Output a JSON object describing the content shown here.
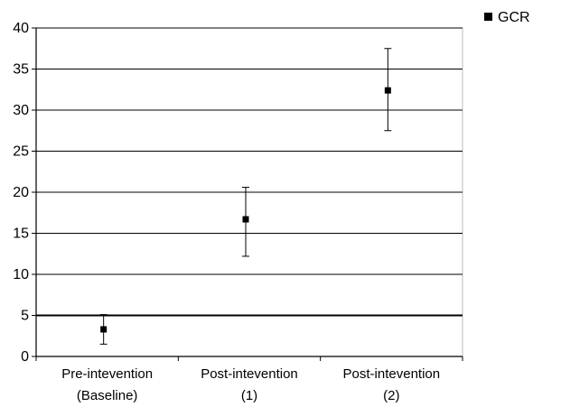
{
  "chart_data": {
    "type": "scatter",
    "categories": [
      [
        "Pre-intevention",
        "(Baseline)"
      ],
      [
        "Post-intevention",
        "(1)"
      ],
      [
        "Post-intevention",
        "(2)"
      ]
    ],
    "series": [
      {
        "name": "GCR",
        "values": [
          3.3,
          16.7,
          32.4
        ],
        "error_low": [
          1.5,
          12.2,
          27.5
        ],
        "error_high": [
          5.1,
          20.6,
          37.5
        ]
      }
    ],
    "ylim": [
      0,
      40
    ],
    "yticks": [
      0,
      5,
      10,
      15,
      20,
      25,
      30,
      35,
      40
    ],
    "grid": true,
    "reference_line": 5,
    "legend_position": "top-right",
    "title": "",
    "xlabel": "",
    "ylabel": ""
  }
}
